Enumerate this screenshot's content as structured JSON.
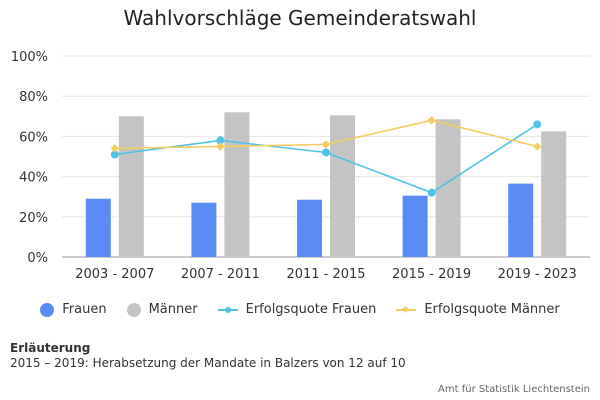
{
  "chart_data": {
    "type": "bar",
    "title": "Wahlvorschläge Gemeinderatswahl",
    "categories": [
      "2003 - 2007",
      "2007 - 2011",
      "2011 - 2015",
      "2015 - 2019",
      "2019 - 2023"
    ],
    "series": [
      {
        "name": "Frauen",
        "kind": "bar",
        "color": "#5b8cf5",
        "values": [
          29,
          27,
          28.5,
          30.5,
          36.5
        ]
      },
      {
        "name": "Männer",
        "kind": "bar",
        "color": "#c4c4c4",
        "values": [
          70,
          72,
          70.5,
          68.5,
          62.5
        ]
      },
      {
        "name": "Erfolgsquote Frauen",
        "kind": "line",
        "marker": "circle",
        "color": "#4fc3e6",
        "values": [
          51,
          58,
          52,
          32,
          66
        ]
      },
      {
        "name": "Erfolgsquote Männer",
        "kind": "line",
        "marker": "diamond",
        "color": "#f2cf63",
        "values": [
          54,
          55,
          56,
          68,
          55
        ]
      }
    ],
    "ylim": [
      0,
      100
    ],
    "yticks": [
      "0%",
      "20%",
      "40%",
      "60%",
      "80%",
      "100%"
    ],
    "grid": true,
    "legend_position": "bottom"
  },
  "note": {
    "title": "Erläuterung",
    "text": "2015 – 2019: Herabsetzung der Mandate in Balzers von 12 auf 10"
  },
  "credit": "Amt für Statistik Liechtenstein"
}
